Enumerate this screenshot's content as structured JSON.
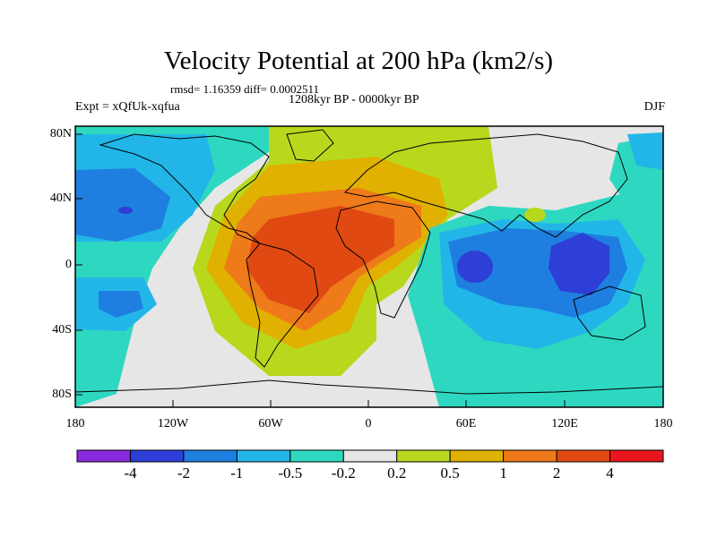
{
  "title": "Velocity Potential at 200 hPa (km2/s)",
  "stats": "rmsd= 1.16359 diff= 0.0002511",
  "period": "1208kyr BP - 0000kyr BP",
  "experiment": "Expt = xQfUk-xqfua",
  "season": "DJF",
  "lat_ticks": [
    "80N",
    "40N",
    "0",
    "40S",
    "80S"
  ],
  "lon_ticks": [
    "180",
    "120W",
    "60W",
    "0",
    "60E",
    "120E",
    "180"
  ],
  "colorbar": {
    "labels": [
      "-4",
      "-2",
      "-1",
      "-0.5",
      "-0.2",
      "0.2",
      "0.5",
      "1",
      "2",
      "4"
    ],
    "colors": [
      "#8a2be2",
      "#2d3fd6",
      "#1e7fe0",
      "#22b6e8",
      "#2ed8c0",
      "#e6e6e6",
      "#b8d81e",
      "#e0b100",
      "#ee7a1a",
      "#e04a12",
      "#e8161c"
    ]
  }
}
